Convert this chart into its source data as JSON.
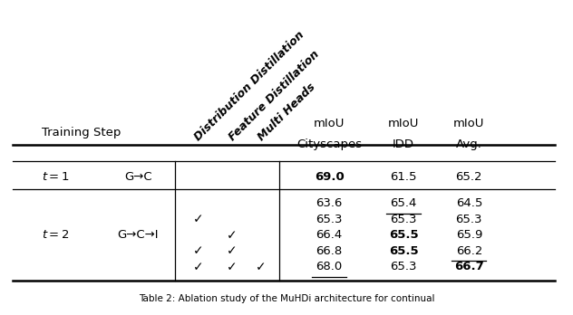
{
  "header_rotated": [
    "Distribution Distillation",
    "Feature Distillation",
    "Multi Heads"
  ],
  "header_normal_line1": [
    "mIoU",
    "mIoU",
    "mIoU"
  ],
  "header_normal_line2": [
    "Cityscapes",
    "IDD",
    "Avg."
  ],
  "col1_label": "Training Step",
  "rows": [
    {
      "group": "t1",
      "step": "t = 1",
      "path": "G→C",
      "checks": [
        false,
        false,
        false
      ],
      "values": [
        "69.0",
        "61.5",
        "65.2"
      ],
      "bold": [
        true,
        false,
        false
      ],
      "underline": [
        false,
        false,
        false
      ]
    },
    {
      "group": "t2",
      "step": "t = 2",
      "path": "G→C→I",
      "checks": [
        false,
        false,
        false
      ],
      "values": [
        "63.6",
        "65.4",
        "64.5"
      ],
      "bold": [
        false,
        false,
        false
      ],
      "underline": [
        false,
        true,
        false
      ]
    },
    {
      "group": "t2",
      "step": "",
      "path": "",
      "checks": [
        true,
        false,
        false
      ],
      "values": [
        "65.3",
        "65.3",
        "65.3"
      ],
      "bold": [
        false,
        false,
        false
      ],
      "underline": [
        false,
        false,
        false
      ]
    },
    {
      "group": "t2",
      "step": "",
      "path": "",
      "checks": [
        false,
        true,
        false
      ],
      "values": [
        "66.4",
        "65.5",
        "65.9"
      ],
      "bold": [
        false,
        true,
        false
      ],
      "underline": [
        false,
        false,
        false
      ]
    },
    {
      "group": "t2",
      "step": "",
      "path": "",
      "checks": [
        true,
        true,
        false
      ],
      "values": [
        "66.8",
        "65.5",
        "66.2"
      ],
      "bold": [
        false,
        true,
        false
      ],
      "underline": [
        false,
        false,
        true
      ]
    },
    {
      "group": "t2",
      "step": "",
      "path": "",
      "checks": [
        true,
        true,
        true
      ],
      "values": [
        "68.0",
        "65.3",
        "66.7"
      ],
      "bold": [
        false,
        false,
        true
      ],
      "underline": [
        true,
        false,
        false
      ]
    }
  ],
  "bg": "#ffffff",
  "fg": "#000000",
  "fs": 9.5,
  "rfs": 9.0,
  "caption": "Table 2: Ablation study of the MuHDi architecture for continual"
}
